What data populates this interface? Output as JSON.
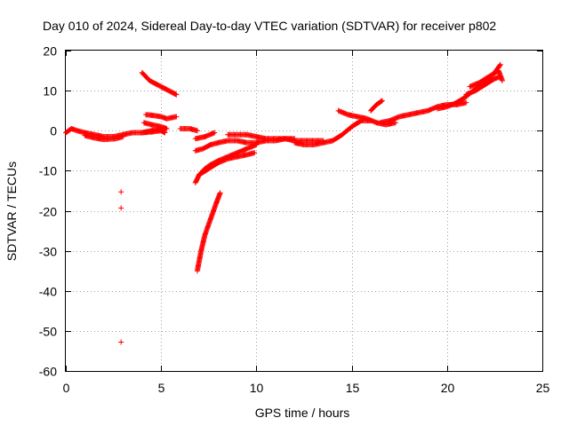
{
  "chart_data": {
    "type": "scatter",
    "title": "Day 010 of 2024, Sidereal Day-to-day VTEC variation (SDTVAR) for receiver p802",
    "xlabel": "GPS time / hours",
    "ylabel": "SDTVAR / TECUs",
    "xlim": [
      0,
      25
    ],
    "ylim": [
      -60,
      20
    ],
    "xticks": [
      0,
      5,
      10,
      15,
      20,
      25
    ],
    "yticks": [
      20,
      10,
      0,
      -10,
      -20,
      -30,
      -40,
      -50,
      -60
    ],
    "grid": true,
    "legend": "none",
    "marker": "+",
    "color": "#ff0000",
    "series": [
      {
        "name": "arc-01",
        "points": [
          [
            0,
            -0.5
          ],
          [
            0.3,
            0.5
          ],
          [
            0.6,
            0
          ],
          [
            1.0,
            -0.5
          ],
          [
            1.5,
            -1.0
          ],
          [
            2.0,
            -1.5
          ],
          [
            2.5,
            -1.5
          ],
          [
            3.0,
            -1.0
          ]
        ]
      },
      {
        "name": "arc-02",
        "points": [
          [
            1.0,
            -1.2
          ],
          [
            1.5,
            -1.8
          ],
          [
            2.0,
            -2.2
          ],
          [
            2.6,
            -2.0
          ],
          [
            3.0,
            -1.5
          ]
        ]
      },
      {
        "name": "arc-03",
        "points": [
          [
            3.0,
            -1.0
          ],
          [
            3.5,
            -0.5
          ],
          [
            4.0,
            -0.5
          ],
          [
            4.5,
            0
          ],
          [
            5.0,
            0.5
          ]
        ]
      },
      {
        "name": "arc-04",
        "points": [
          [
            4.2,
            4.0
          ],
          [
            4.6,
            3.8
          ],
          [
            5.0,
            3.5
          ],
          [
            5.3,
            3.0
          ],
          [
            5.8,
            3.5
          ]
        ]
      },
      {
        "name": "arc-05",
        "points": [
          [
            4.1,
            2.0
          ],
          [
            4.5,
            1.5
          ],
          [
            5.0,
            1.0
          ],
          [
            5.3,
            0.5
          ]
        ]
      },
      {
        "name": "arc-06",
        "points": [
          [
            4.0,
            -0.5
          ],
          [
            4.5,
            -0.3
          ],
          [
            5.0,
            0
          ],
          [
            5.2,
            -0.5
          ]
        ]
      },
      {
        "name": "arc-07",
        "points": [
          [
            4.0,
            14.5
          ],
          [
            4.4,
            12.5
          ],
          [
            4.8,
            11.5
          ],
          [
            5.2,
            10.5
          ],
          [
            5.6,
            9.5
          ],
          [
            5.8,
            9.0
          ]
        ]
      },
      {
        "name": "arc-08",
        "points": [
          [
            6.0,
            0.5
          ],
          [
            6.5,
            0.5
          ],
          [
            6.9,
            0
          ]
        ]
      },
      {
        "name": "arc-09",
        "points": [
          [
            6.8,
            -2.0
          ],
          [
            7.3,
            -1.5
          ],
          [
            7.8,
            -0.5
          ]
        ]
      },
      {
        "name": "arc-10",
        "points": [
          [
            6.9,
            -35
          ],
          [
            7.1,
            -30
          ],
          [
            7.3,
            -26
          ],
          [
            7.6,
            -22
          ],
          [
            7.9,
            -18
          ],
          [
            8.1,
            -15.5
          ]
        ]
      },
      {
        "name": "arc-11",
        "points": [
          [
            6.8,
            -13
          ],
          [
            7.0,
            -11
          ],
          [
            7.3,
            -9.5
          ],
          [
            7.6,
            -8.5
          ],
          [
            8.0,
            -7.5
          ],
          [
            8.5,
            -6.5
          ],
          [
            9.0,
            -5.5
          ],
          [
            9.5,
            -4.5
          ],
          [
            10.0,
            -3.5
          ]
        ]
      },
      {
        "name": "arc-12",
        "points": [
          [
            7.0,
            -11
          ],
          [
            7.5,
            -9.5
          ],
          [
            8.0,
            -8.0
          ],
          [
            8.5,
            -7.0
          ],
          [
            9.0,
            -6.5
          ],
          [
            9.5,
            -6.0
          ],
          [
            9.9,
            -5.5
          ]
        ]
      },
      {
        "name": "arc-13",
        "points": [
          [
            6.8,
            -5.0
          ],
          [
            7.2,
            -4.5
          ],
          [
            7.6,
            -3.5
          ],
          [
            8.0,
            -3.0
          ],
          [
            8.5,
            -2.5
          ],
          [
            9.0,
            -2.5
          ],
          [
            9.5,
            -3.0
          ],
          [
            10.0,
            -3.0
          ]
        ]
      },
      {
        "name": "arc-14",
        "points": [
          [
            8.5,
            -1.0
          ],
          [
            9.0,
            -1.0
          ],
          [
            9.5,
            -1.0
          ],
          [
            10.0,
            -1.5
          ],
          [
            10.5,
            -2.0
          ],
          [
            11.0,
            -2.0
          ],
          [
            11.5,
            -2.0
          ],
          [
            12.0,
            -2.0
          ]
        ]
      },
      {
        "name": "arc-15",
        "points": [
          [
            10.0,
            -3.0
          ],
          [
            10.5,
            -2.5
          ],
          [
            11.0,
            -2.5
          ],
          [
            11.5,
            -2.0
          ],
          [
            12.0,
            -2.5
          ],
          [
            12.5,
            -2.5
          ],
          [
            13.0,
            -2.5
          ],
          [
            13.5,
            -2.5
          ]
        ]
      },
      {
        "name": "arc-16",
        "points": [
          [
            12.0,
            -3.0
          ],
          [
            12.5,
            -3.5
          ],
          [
            13.0,
            -3.5
          ],
          [
            13.5,
            -3.0
          ],
          [
            14.0,
            -2.5
          ],
          [
            14.5,
            -1.0
          ],
          [
            15.0,
            1.0
          ],
          [
            15.5,
            2.5
          ],
          [
            16.0,
            2.5
          ]
        ]
      },
      {
        "name": "arc-17",
        "points": [
          [
            14.3,
            5.0
          ],
          [
            14.8,
            4.0
          ],
          [
            15.3,
            3.5
          ],
          [
            15.8,
            3.0
          ],
          [
            16.3,
            2.0
          ],
          [
            16.8,
            1.5
          ],
          [
            17.3,
            2.0
          ]
        ]
      },
      {
        "name": "arc-18",
        "points": [
          [
            16.0,
            5.0
          ],
          [
            16.3,
            6.5
          ],
          [
            16.6,
            7.5
          ]
        ]
      },
      {
        "name": "arc-19",
        "points": [
          [
            16.5,
            2.0
          ],
          [
            17.0,
            2.5
          ],
          [
            17.5,
            3.5
          ],
          [
            18.0,
            4.0
          ],
          [
            18.5,
            4.5
          ],
          [
            19.0,
            5.0
          ],
          [
            19.5,
            6.0
          ],
          [
            20.0,
            6.5
          ],
          [
            20.5,
            6.5
          ],
          [
            21.0,
            7.0
          ]
        ]
      },
      {
        "name": "arc-20",
        "points": [
          [
            19.5,
            5.5
          ],
          [
            20.0,
            6.0
          ],
          [
            20.5,
            7.0
          ],
          [
            21.0,
            8.5
          ],
          [
            21.5,
            10.5
          ],
          [
            22.0,
            12.0
          ],
          [
            22.5,
            14.5
          ],
          [
            22.8,
            16.5
          ]
        ]
      },
      {
        "name": "arc-21",
        "points": [
          [
            21.0,
            9.0
          ],
          [
            21.5,
            10.0
          ],
          [
            22.0,
            11.5
          ],
          [
            22.5,
            13.0
          ],
          [
            22.8,
            13.5
          ]
        ]
      },
      {
        "name": "arc-22",
        "points": [
          [
            21.2,
            11.0
          ],
          [
            21.7,
            12.0
          ],
          [
            22.2,
            13.5
          ],
          [
            22.7,
            15.0
          ],
          [
            22.9,
            12.5
          ]
        ]
      },
      {
        "name": "outliers",
        "points": [
          [
            2.9,
            -15.3
          ],
          [
            2.9,
            -19.3
          ],
          [
            2.9,
            -52.8
          ]
        ]
      }
    ]
  }
}
